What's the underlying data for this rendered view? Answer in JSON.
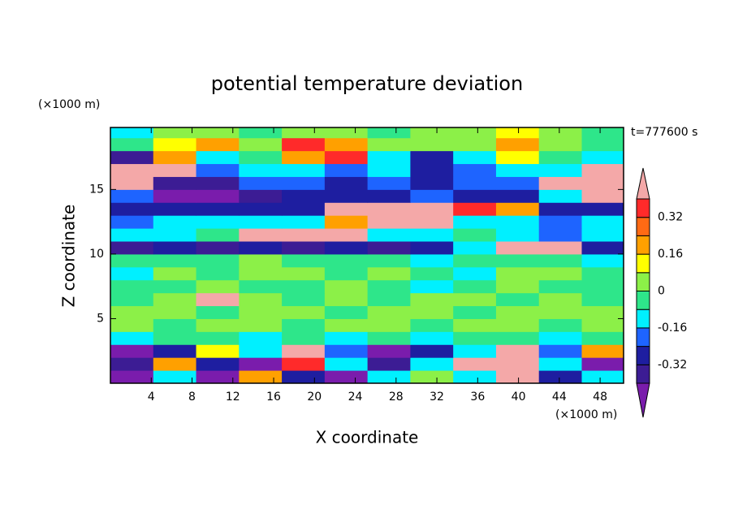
{
  "chart_data": {
    "type": "contour",
    "title": "potential temperature deviation",
    "xlabel": "X coordinate",
    "ylabel": "Z coordinate",
    "x_unit": "(×1000 m)",
    "y_unit": "(×1000 m)",
    "time_label": "t=777600 s",
    "xlim": [
      0,
      50.3
    ],
    "ylim": [
      0,
      19.8
    ],
    "xticks": [
      4,
      8,
      12,
      16,
      20,
      24,
      28,
      32,
      36,
      40,
      44,
      48
    ],
    "yticks": [
      5,
      10,
      15
    ],
    "levels": [
      -0.4,
      -0.32,
      -0.24,
      -0.16,
      -0.08,
      0,
      0.08,
      0.16,
      0.24,
      0.32,
      0.4
    ],
    "colors": [
      "#7a1cac",
      "#3c1c94",
      "#1e1ea0",
      "#1e64ff",
      "#00f0ff",
      "#2ee68a",
      "#8cf048",
      "#ffff00",
      "#ffa000",
      "#ff6a14",
      "#ff2a2a",
      "#f4a8a8"
    ],
    "cbar_ticks": [
      -0.32,
      -0.16,
      0,
      0.16,
      0.32
    ],
    "x": [
      2.1,
      6.3,
      10.5,
      14.7,
      18.9,
      23.1,
      27.3,
      31.5,
      35.7,
      39.9,
      44.1,
      48.3
    ],
    "y": [
      0.5,
      1.5,
      2.5,
      3.5,
      4.5,
      5.5,
      6.5,
      7.5,
      8.5,
      9.5,
      10.5,
      11.5,
      12.5,
      13.5,
      14.5,
      15.5,
      16.5,
      17.5,
      18.5,
      19.5
    ],
    "z": [
      [
        -0.45,
        -0.12,
        -0.45,
        0.2,
        -0.28,
        -0.45,
        -0.12,
        0.04,
        -0.12,
        0.45,
        -0.28,
        -0.12
      ],
      [
        -0.36,
        0.2,
        -0.28,
        -0.45,
        0.36,
        -0.12,
        -0.36,
        -0.12,
        0.45,
        0.45,
        -0.12,
        -0.45
      ],
      [
        -0.45,
        -0.28,
        0.12,
        -0.12,
        0.45,
        -0.2,
        -0.45,
        -0.28,
        -0.12,
        0.45,
        -0.2,
        0.2
      ],
      [
        -0.12,
        -0.04,
        -0.04,
        -0.12,
        -0.04,
        -0.12,
        -0.04,
        -0.12,
        -0.04,
        -0.04,
        -0.12,
        -0.04
      ],
      [
        0.04,
        -0.04,
        0.04,
        0.04,
        -0.04,
        0.04,
        0.04,
        -0.04,
        0.04,
        0.04,
        -0.04,
        0.04
      ],
      [
        0.04,
        0.04,
        -0.04,
        0.04,
        0.04,
        -0.04,
        0.04,
        0.04,
        -0.04,
        0.04,
        0.04,
        0.04
      ],
      [
        -0.04,
        0.04,
        0.45,
        0.04,
        -0.04,
        0.04,
        -0.04,
        0.04,
        0.04,
        -0.04,
        0.04,
        -0.04
      ],
      [
        -0.04,
        -0.04,
        0.04,
        -0.04,
        -0.04,
        0.04,
        -0.04,
        -0.12,
        -0.04,
        0.04,
        -0.04,
        -0.04
      ],
      [
        -0.12,
        0.04,
        -0.04,
        0.04,
        0.04,
        -0.04,
        0.04,
        -0.04,
        -0.12,
        0.04,
        0.04,
        -0.04
      ],
      [
        -0.04,
        -0.04,
        -0.04,
        0.04,
        -0.04,
        -0.04,
        -0.04,
        -0.12,
        -0.04,
        -0.04,
        -0.04,
        -0.12
      ],
      [
        -0.36,
        -0.28,
        -0.36,
        -0.28,
        -0.36,
        -0.28,
        -0.36,
        -0.28,
        -0.12,
        0.45,
        0.45,
        -0.28
      ],
      [
        -0.12,
        -0.12,
        -0.04,
        0.45,
        0.45,
        0.45,
        -0.12,
        -0.12,
        -0.04,
        -0.12,
        -0.2,
        -0.12
      ],
      [
        -0.2,
        -0.12,
        -0.12,
        -0.12,
        -0.12,
        0.2,
        0.45,
        0.45,
        -0.12,
        -0.12,
        -0.2,
        -0.12
      ],
      [
        -0.28,
        -0.28,
        -0.28,
        -0.28,
        -0.28,
        0.45,
        0.45,
        0.45,
        0.36,
        0.2,
        -0.28,
        -0.28
      ],
      [
        -0.2,
        -0.45,
        -0.45,
        -0.36,
        -0.28,
        -0.28,
        -0.28,
        -0.2,
        -0.28,
        -0.28,
        -0.12,
        0.45
      ],
      [
        0.45,
        -0.36,
        -0.36,
        -0.2,
        -0.2,
        -0.28,
        -0.2,
        -0.28,
        -0.2,
        -0.2,
        0.45,
        0.45
      ],
      [
        0.45,
        0.45,
        -0.2,
        -0.12,
        -0.12,
        -0.2,
        -0.12,
        -0.28,
        -0.2,
        -0.12,
        -0.12,
        0.45
      ],
      [
        -0.36,
        0.2,
        -0.12,
        -0.04,
        0.2,
        0.36,
        -0.12,
        -0.28,
        -0.12,
        0.12,
        -0.04,
        -0.12
      ],
      [
        -0.04,
        0.12,
        0.2,
        0.04,
        0.36,
        0.2,
        0.04,
        0.04,
        0.04,
        0.2,
        0.04,
        -0.04
      ],
      [
        -0.12,
        0.04,
        0.04,
        -0.04,
        0.04,
        0.04,
        -0.04,
        0.04,
        0.04,
        0.12,
        0.04,
        -0.04
      ]
    ]
  }
}
